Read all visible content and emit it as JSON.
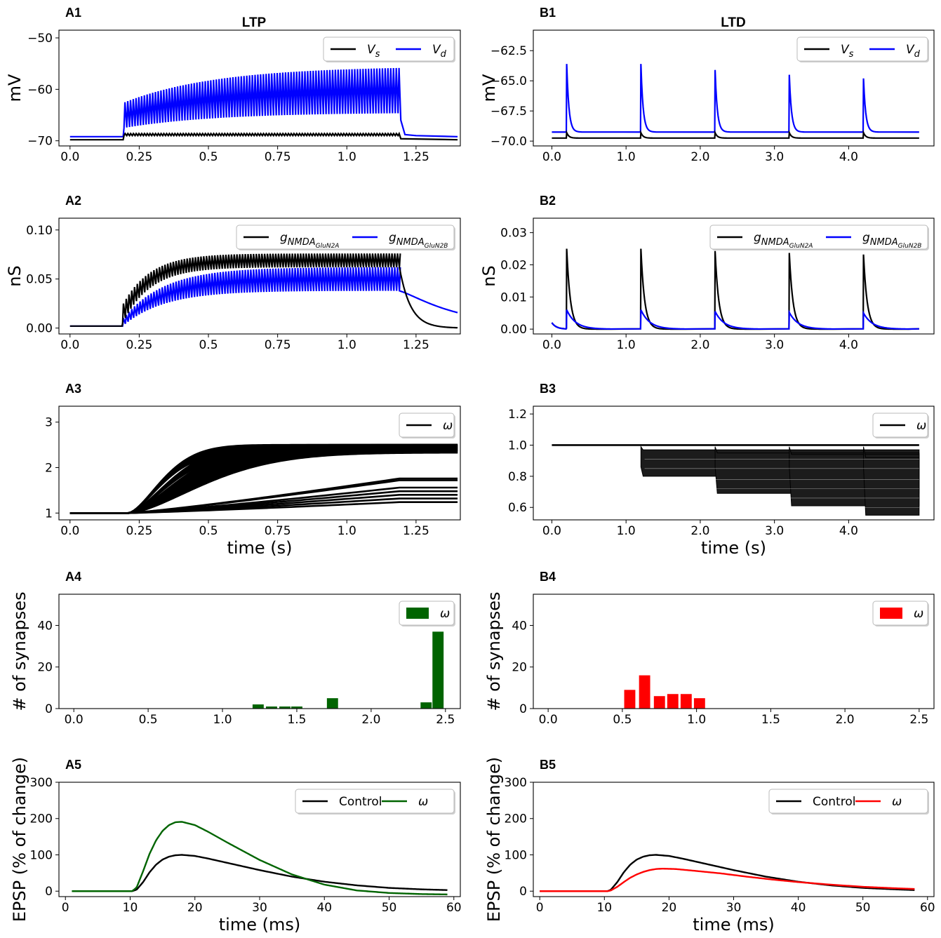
{
  "column_titles": [
    "LTP",
    "LTD"
  ],
  "colors": {
    "black": "#000000",
    "blue": "#0000ff",
    "green": "#006400",
    "red": "#ff0000"
  },
  "chart_data": [
    {
      "id": "A1",
      "type": "line",
      "title": "LTP",
      "panel_label": "A1",
      "ylabel": "mV",
      "xlabel": "",
      "xlim": [
        -0.04,
        1.41
      ],
      "ylim": [
        -71.0,
        -48.5
      ],
      "xticks": [
        0.0,
        0.25,
        0.5,
        0.75,
        1.0,
        1.25
      ],
      "xtick_labels": [
        "0.0",
        "0.25",
        "0.5",
        "0.75",
        "1.0",
        "1.25"
      ],
      "yticks": [
        -70,
        -60,
        -50
      ],
      "ytick_labels": [
        "−70",
        "−60",
        "−50"
      ],
      "legend": {
        "position": "top-right",
        "entries": [
          {
            "label": "V",
            "sub": "s",
            "color": "#000000"
          },
          {
            "label": "V",
            "sub": "d",
            "color": "#0000ff"
          }
        ]
      },
      "series": [
        {
          "name": "V_s",
          "color": "#000000",
          "x": [
            0.0,
            0.19,
            0.2,
            0.5,
            1.19,
            1.2,
            1.4
          ],
          "y": [
            -69.8,
            -69.8,
            -68.9,
            -68.8,
            -68.7,
            -69.8,
            -69.8
          ]
        },
        {
          "name": "V_d",
          "color": "#0000ff",
          "x": [
            0.0,
            0.19,
            0.2,
            1.19,
            1.2,
            1.4
          ],
          "y": [
            -69.2,
            -69.2,
            -63.5,
            -55.4,
            -69.0,
            -69.2
          ]
        }
      ],
      "oscillation": {
        "series": "V_d",
        "t_start": 0.195,
        "t_end": 1.19,
        "period": 0.01,
        "peak_start": -62.5,
        "peak_end": -55.5,
        "trough_start": -67.5,
        "trough_end": -64.5
      }
    },
    {
      "id": "B1",
      "type": "line",
      "title": "LTD",
      "panel_label": "B1",
      "ylabel": "mV",
      "xlabel": "",
      "xlim": [
        -0.25,
        5.15
      ],
      "ylim": [
        -70.4,
        -60.8
      ],
      "xticks": [
        0.0,
        1.0,
        2.0,
        3.0,
        4.0
      ],
      "xtick_labels": [
        "0.0",
        "1.0",
        "2.0",
        "3.0",
        "4.0"
      ],
      "yticks": [
        -70.0,
        -67.5,
        -65.0,
        -62.5
      ],
      "ytick_labels": [
        "−70.0",
        "−67.5",
        "−65.0",
        "−62.5"
      ],
      "legend": {
        "position": "top-right",
        "entries": [
          {
            "label": "V",
            "sub": "s",
            "color": "#000000"
          },
          {
            "label": "V",
            "sub": "d",
            "color": "#0000ff"
          }
        ]
      },
      "series": [
        {
          "name": "V_s",
          "color": "#000000",
          "baseline": -69.75,
          "spike_times": [
            0.2,
            1.2,
            2.2,
            3.2,
            4.2
          ],
          "spike_peaks": [
            -69.3,
            -69.3,
            -69.3,
            -69.3,
            -69.3
          ],
          "x_end": 4.95
        },
        {
          "name": "V_d",
          "color": "#0000ff",
          "baseline": -69.25,
          "spike_times": [
            0.2,
            1.2,
            2.2,
            3.2,
            4.2
          ],
          "spike_peaks": [
            -63.6,
            -63.6,
            -64.1,
            -64.5,
            -64.8
          ],
          "x_end": 4.95
        }
      ]
    },
    {
      "id": "A2",
      "type": "line",
      "panel_label": "A2",
      "ylabel": "nS",
      "xlabel": "",
      "xlim": [
        -0.04,
        1.41
      ],
      "ylim": [
        -0.006,
        0.112
      ],
      "xticks": [
        0.0,
        0.25,
        0.5,
        0.75,
        1.0,
        1.25
      ],
      "xtick_labels": [
        "0.0",
        "0.25",
        "0.5",
        "0.75",
        "1.0",
        "1.25"
      ],
      "yticks": [
        0.0,
        0.05,
        0.1
      ],
      "ytick_labels": [
        "0.00",
        "0.05",
        "0.10"
      ],
      "legend": {
        "position": "top-right",
        "entries": [
          {
            "label": "g",
            "sub": "NMDA",
            "subsub": "GluN2A",
            "color": "#000000"
          },
          {
            "label": "g",
            "sub": "NMDA",
            "subsub": "GluN2B",
            "color": "#0000ff"
          }
        ]
      },
      "series": [
        {
          "name": "g_NMDA_GluN2A",
          "color": "#000000",
          "pre": 0.002,
          "t_start": 0.19,
          "t_end": 1.19,
          "peak_start": 0.025,
          "peak_end": 0.076,
          "trough_start": 0.005,
          "trough_end": 0.062,
          "tau": 0.1,
          "decay_to": 0.0,
          "decay_tau": 0.04,
          "x_end": 1.4
        },
        {
          "name": "g_NMDA_GluN2B",
          "color": "#0000ff",
          "pre": 0.002,
          "t_start": 0.19,
          "t_end": 1.19,
          "peak_start": 0.01,
          "peak_end": 0.062,
          "trough_start": 0.002,
          "trough_end": 0.038,
          "tau": 0.15,
          "decay_to": 0.0,
          "decay_tau": 0.2,
          "x_end": 1.4
        }
      ]
    },
    {
      "id": "B2",
      "type": "line",
      "panel_label": "B2",
      "ylabel": "nS",
      "xlabel": "",
      "xlim": [
        -0.25,
        5.15
      ],
      "ylim": [
        -0.0015,
        0.0345
      ],
      "xticks": [
        0.0,
        1.0,
        2.0,
        3.0,
        4.0
      ],
      "xtick_labels": [
        "0.0",
        "1.0",
        "2.0",
        "3.0",
        "4.0"
      ],
      "yticks": [
        0.0,
        0.01,
        0.02,
        0.03
      ],
      "ytick_labels": [
        "0.00",
        "0.01",
        "0.02",
        "0.03"
      ],
      "legend": {
        "position": "top-right",
        "entries": [
          {
            "label": "g",
            "sub": "NMDA",
            "subsub": "GluN2A",
            "color": "#000000"
          },
          {
            "label": "g",
            "sub": "NMDA",
            "subsub": "GluN2B",
            "color": "#0000ff"
          }
        ]
      },
      "series": [
        {
          "name": "g_NMDA_GluN2A",
          "color": "#000000",
          "initial": 0.002,
          "spike_times": [
            0.2,
            1.2,
            2.2,
            3.2,
            4.2
          ],
          "spike_peaks": [
            0.025,
            0.025,
            0.0243,
            0.0237,
            0.0232
          ],
          "tau": 0.05,
          "x_end": 4.95
        },
        {
          "name": "g_NMDA_GluN2B",
          "color": "#0000ff",
          "initial": 0.002,
          "spike_times": [
            0.2,
            1.2,
            2.2,
            3.2,
            4.2
          ],
          "spike_peaks": [
            0.006,
            0.006,
            0.0055,
            0.0052,
            0.005
          ],
          "tau": 0.12,
          "x_end": 4.95
        }
      ]
    },
    {
      "id": "A3",
      "type": "line",
      "panel_label": "A3",
      "ylabel": "",
      "xlabel": "time (s)",
      "xlim": [
        -0.04,
        1.41
      ],
      "ylim": [
        0.85,
        3.35
      ],
      "xticks": [
        0.0,
        0.25,
        0.5,
        0.75,
        1.0,
        1.25
      ],
      "xtick_labels": [
        "0.0",
        "0.25",
        "0.5",
        "0.75",
        "1.0",
        "1.25"
      ],
      "yticks": [
        1,
        2,
        3
      ],
      "ytick_labels": [
        "1",
        "2",
        "3"
      ],
      "legend": {
        "position": "top-right",
        "entries": [
          {
            "label": "ω",
            "color": "#000000"
          }
        ]
      },
      "series": [
        {
          "name": "omega",
          "color": "#000000",
          "onset": 0.21,
          "x_end": 1.4,
          "fast_band_finals": [
            2.33,
            2.36,
            2.38,
            2.4,
            2.42,
            2.44,
            2.46,
            2.48,
            2.5
          ],
          "fast_band_taus": [
            0.16,
            0.2,
            0.24,
            0.28,
            0.32,
            0.36
          ],
          "slow_finals": [
            1.76,
            1.72,
            1.56,
            1.48,
            1.4,
            1.32,
            1.24
          ],
          "slow_stop": 1.19
        }
      ]
    },
    {
      "id": "B3",
      "type": "line",
      "panel_label": "B3",
      "ylabel": "",
      "xlabel": "time (s)",
      "xlim": [
        -0.25,
        5.15
      ],
      "ylim": [
        0.52,
        1.25
      ],
      "xticks": [
        0.0,
        1.0,
        2.0,
        3.0,
        4.0
      ],
      "xtick_labels": [
        "0.0",
        "1.0",
        "2.0",
        "3.0",
        "4.0"
      ],
      "yticks": [
        0.6,
        0.8,
        1.0,
        1.2
      ],
      "ytick_labels": [
        "0.6",
        "0.8",
        "1.0",
        "1.2"
      ],
      "legend": {
        "position": "top-right",
        "entries": [
          {
            "label": "ω",
            "color": "#000000"
          }
        ]
      },
      "series": [
        {
          "name": "omega",
          "color": "#000000",
          "initial": 1.0,
          "x_end": 4.95,
          "step_times": [
            1.2,
            2.2,
            3.2,
            4.2
          ],
          "band_ranges": [
            [
              0.8,
              0.97
            ],
            [
              0.69,
              0.95
            ],
            [
              0.61,
              0.94
            ],
            [
              0.55,
              0.92
            ]
          ]
        }
      ]
    },
    {
      "id": "A4",
      "type": "bar",
      "panel_label": "A4",
      "ylabel": "# of synapses",
      "xlabel": "",
      "xlim": [
        -0.1,
        2.6
      ],
      "ylim": [
        0,
        55
      ],
      "xticks": [
        0.0,
        0.5,
        1.0,
        1.5,
        2.0,
        2.5
      ],
      "xtick_labels": [
        "0.0",
        "0.5",
        "1.0",
        "1.5",
        "2.0",
        "2.5"
      ],
      "yticks": [
        0,
        20,
        40
      ],
      "ytick_labels": [
        "0",
        "20",
        "40"
      ],
      "legend": {
        "position": "top-right",
        "entries": [
          {
            "label": "ω",
            "color": "#006400"
          }
        ]
      },
      "bar_width": 0.075,
      "x": [
        1.24,
        1.33,
        1.42,
        1.5,
        1.74,
        2.37,
        2.45
      ],
      "values": [
        2,
        1,
        1,
        1,
        5,
        3,
        37
      ]
    },
    {
      "id": "B4",
      "type": "bar",
      "panel_label": "B4",
      "ylabel": "# of synapses",
      "xlabel": "",
      "xlim": [
        -0.1,
        2.6
      ],
      "ylim": [
        0,
        55
      ],
      "xticks": [
        0.0,
        0.5,
        1.0,
        1.5,
        2.0,
        2.5
      ],
      "xtick_labels": [
        "0.0",
        "0.5",
        "1.0",
        "1.5",
        "2.0",
        "2.5"
      ],
      "yticks": [
        0,
        20,
        40
      ],
      "ytick_labels": [
        "0",
        "20",
        "40"
      ],
      "legend": {
        "position": "top-right",
        "entries": [
          {
            "label": "ω",
            "color": "#ff0000"
          }
        ]
      },
      "bar_width": 0.075,
      "x": [
        0.55,
        0.65,
        0.75,
        0.84,
        0.93,
        1.02
      ],
      "values": [
        9,
        16,
        6,
        7,
        7,
        5
      ]
    },
    {
      "id": "A5",
      "type": "line",
      "panel_label": "A5",
      "ylabel": "EPSP (% of change)",
      "xlabel": "time (ms)",
      "xlim": [
        -1,
        61
      ],
      "ylim": [
        -15,
        300
      ],
      "xticks": [
        0,
        10,
        20,
        30,
        40,
        50,
        60
      ],
      "xtick_labels": [
        "0",
        "10",
        "20",
        "30",
        "40",
        "50",
        "60"
      ],
      "yticks": [
        0,
        100,
        200,
        300
      ],
      "ytick_labels": [
        "0",
        "100",
        "200",
        "300"
      ],
      "legend": {
        "position": "top-right",
        "entries": [
          {
            "label": "Control",
            "color": "#000000"
          },
          {
            "label": "ω",
            "color": "#006400"
          }
        ]
      },
      "series": [
        {
          "name": "Control",
          "color": "#000000",
          "x": [
            1,
            10.3,
            11,
            12,
            13,
            14,
            15,
            16,
            17,
            18,
            20,
            22,
            25,
            30,
            35,
            40,
            45,
            50,
            55,
            59
          ],
          "y": [
            0,
            0,
            4,
            25,
            52,
            73,
            87,
            95,
            99,
            100,
            97,
            90,
            78,
            58,
            40,
            26,
            16,
            9,
            5,
            3
          ]
        },
        {
          "name": "omega",
          "color": "#006400",
          "x": [
            1,
            10.3,
            11,
            12,
            13,
            14,
            15,
            16,
            17,
            18,
            20,
            22,
            25,
            30,
            35,
            40,
            45,
            50,
            55,
            59
          ],
          "y": [
            0,
            0,
            10,
            55,
            103,
            140,
            166,
            182,
            190,
            191,
            182,
            164,
            134,
            86,
            46,
            18,
            2,
            -5,
            -8,
            -9
          ]
        }
      ]
    },
    {
      "id": "B5",
      "type": "line",
      "panel_label": "B5",
      "ylabel": "EPSP (% of change)",
      "xlabel": "time (ms)",
      "xlim": [
        -1,
        61
      ],
      "ylim": [
        -15,
        300
      ],
      "xticks": [
        0,
        10,
        20,
        30,
        40,
        50,
        60
      ],
      "xtick_labels": [
        "0",
        "10",
        "20",
        "30",
        "40",
        "50",
        "60"
      ],
      "yticks": [
        0,
        100,
        200,
        300
      ],
      "ytick_labels": [
        "0",
        "100",
        "200",
        "300"
      ],
      "legend": {
        "position": "top-right",
        "entries": [
          {
            "label": "Control",
            "color": "#000000"
          },
          {
            "label": "ω",
            "color": "#ff0000"
          }
        ]
      },
      "series": [
        {
          "name": "Control",
          "color": "#000000",
          "x": [
            0,
            10.5,
            11,
            12,
            13,
            14,
            15,
            16,
            17,
            18,
            20,
            22,
            25,
            30,
            35,
            40,
            45,
            50,
            55,
            58
          ],
          "y": [
            0,
            0,
            4,
            25,
            52,
            73,
            87,
            95,
            99,
            100,
            97,
            90,
            78,
            58,
            40,
            26,
            16,
            9,
            5,
            3
          ]
        },
        {
          "name": "omega",
          "color": "#ff0000",
          "x": [
            0,
            10.5,
            11,
            12,
            13,
            14,
            15,
            16,
            17,
            18,
            19,
            21,
            24,
            28,
            32,
            36,
            40,
            45,
            50,
            55,
            58
          ],
          "y": [
            0,
            0,
            2,
            12,
            25,
            37,
            46,
            53,
            58,
            61,
            62,
            61,
            56,
            49,
            40,
            32,
            25,
            18,
            12,
            8,
            6
          ]
        }
      ]
    }
  ]
}
